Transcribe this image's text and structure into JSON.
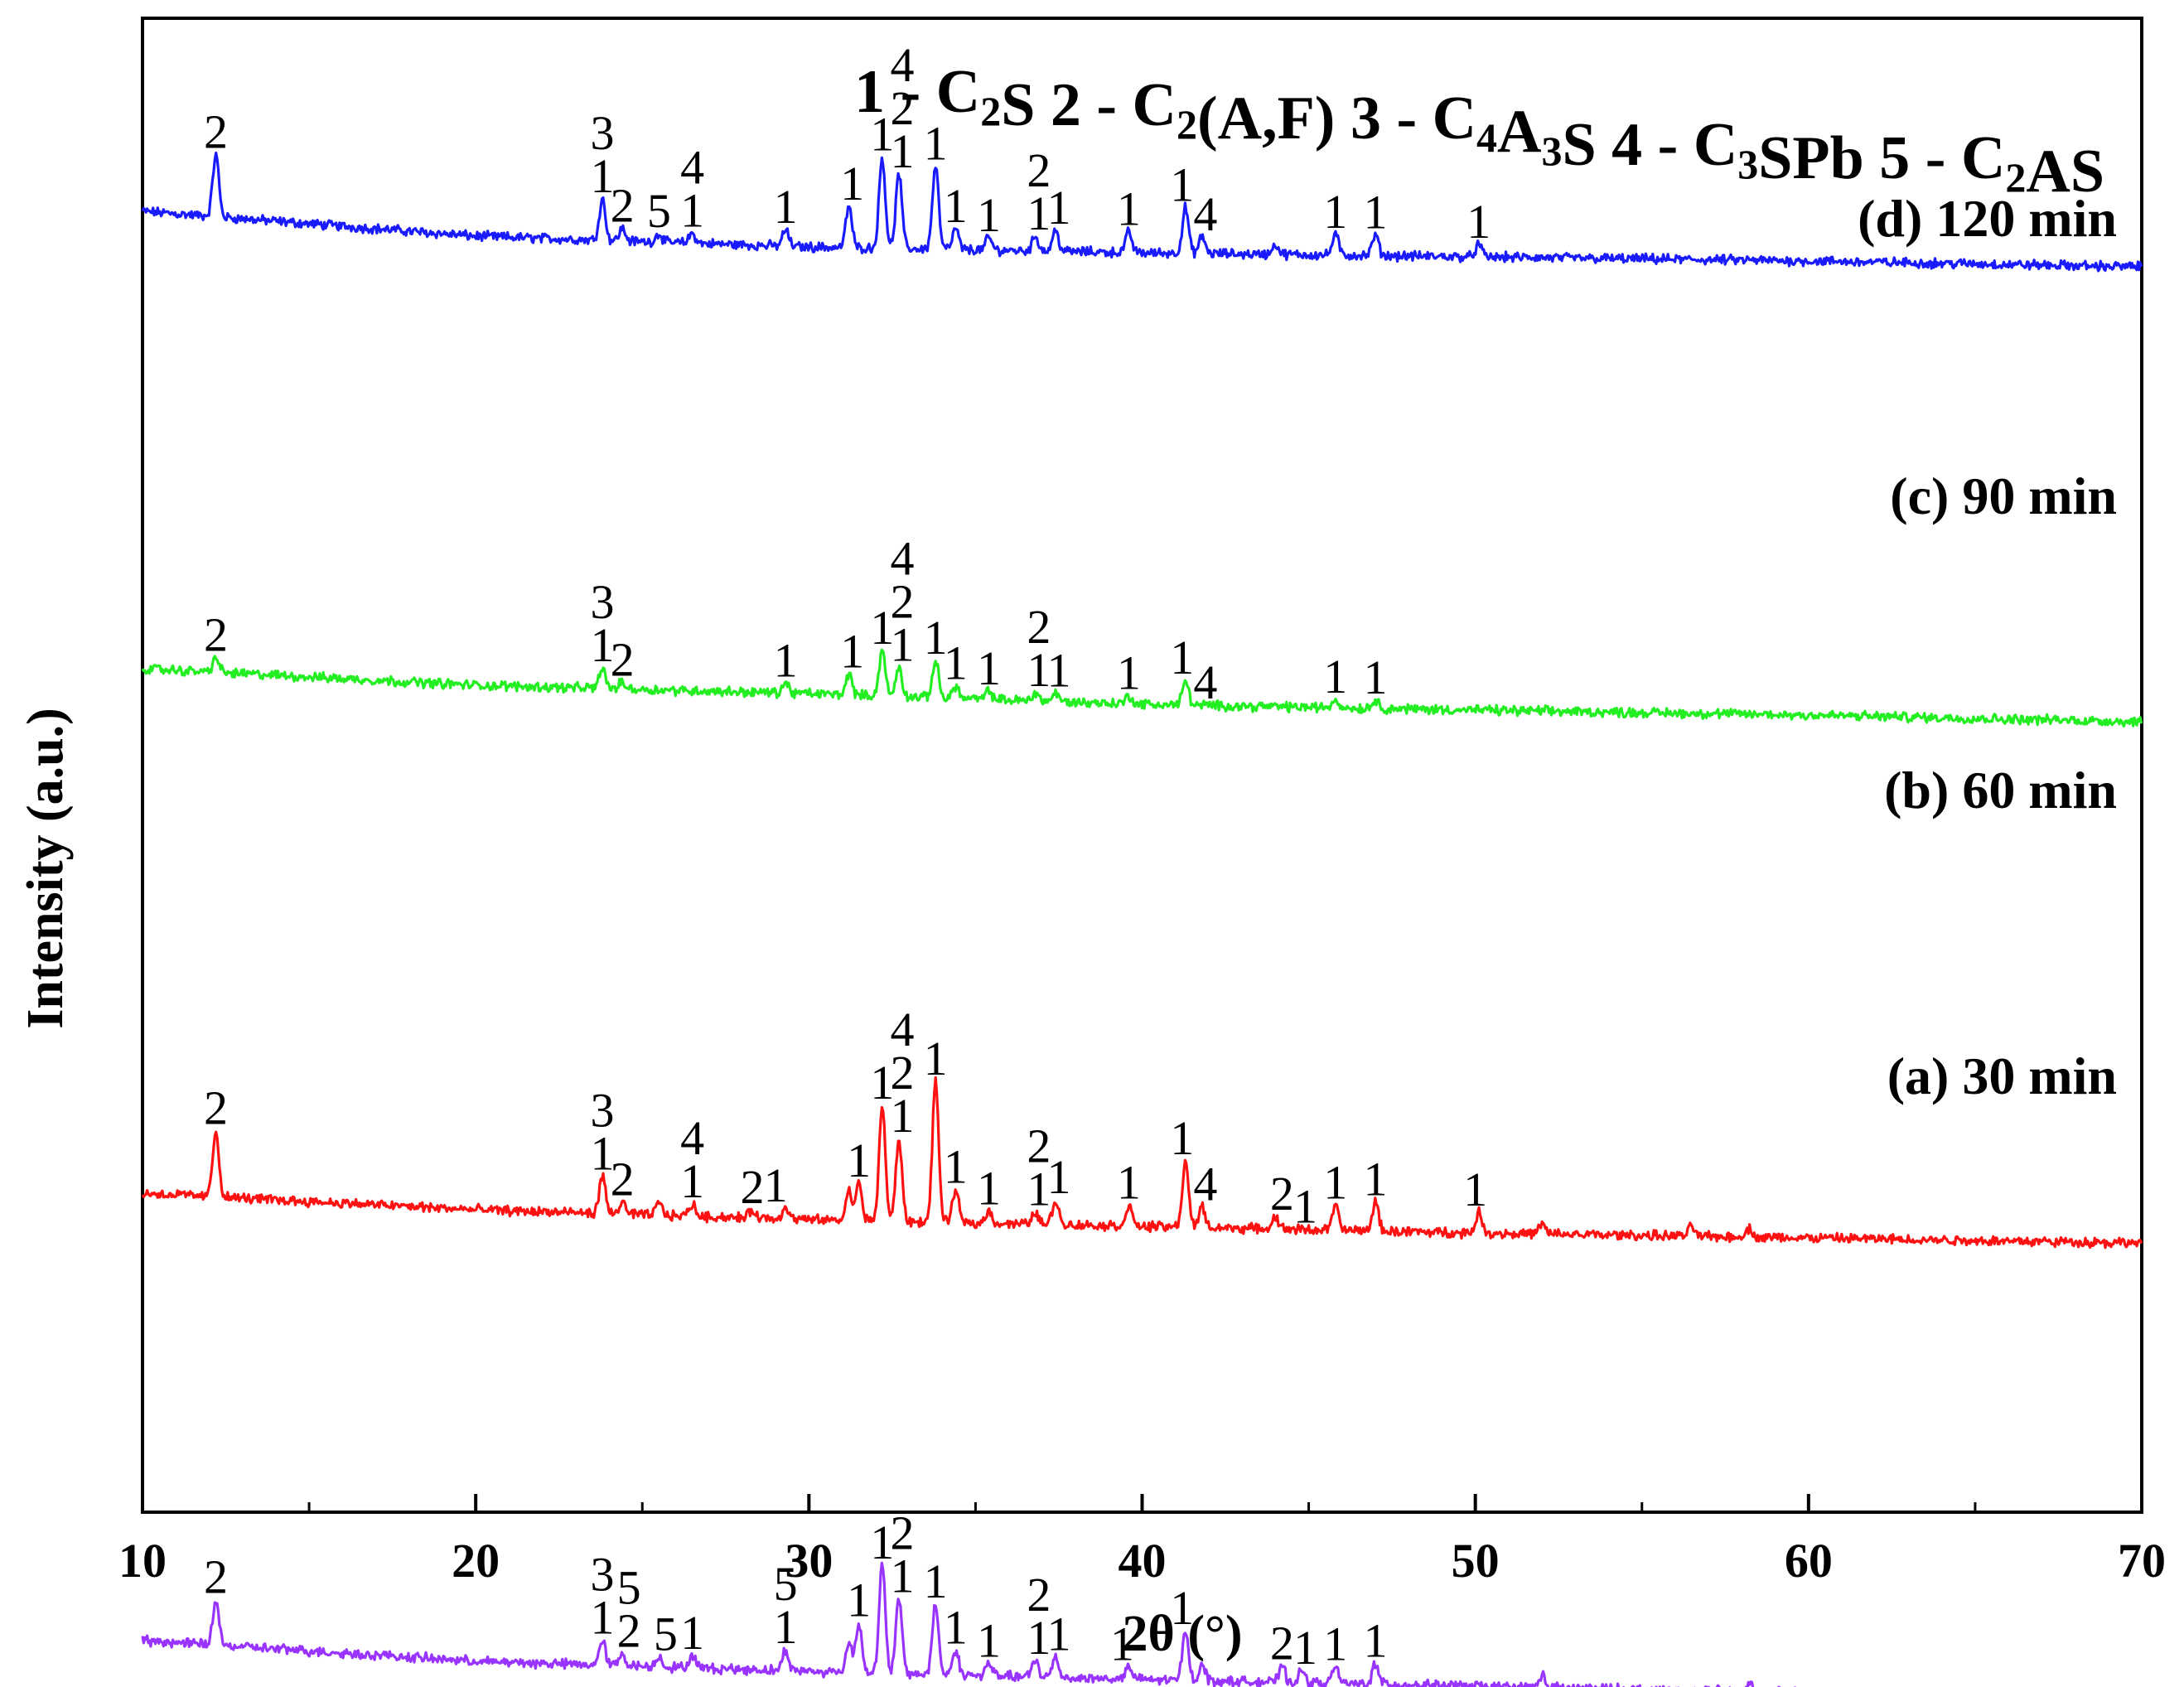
{
  "chart_data": {
    "type": "line",
    "xlabel": "2θ (°)",
    "ylabel": "Intensity (a.u.)",
    "xlim": [
      10,
      70
    ],
    "xticks": [
      10,
      20,
      30,
      40,
      50,
      60,
      70
    ],
    "legend_phases": [
      {
        "num": "1",
        "parts": [
          [
            "C",
            ""
          ],
          [
            "2",
            "sub"
          ],
          [
            "S",
            ""
          ]
        ]
      },
      {
        "num": "2",
        "parts": [
          [
            "C",
            ""
          ],
          [
            "2",
            "sub"
          ],
          [
            "(A,F)",
            ""
          ]
        ]
      },
      {
        "num": "3",
        "parts": [
          [
            "C",
            ""
          ],
          [
            "4",
            "sub"
          ],
          [
            "A",
            ""
          ],
          [
            "3",
            "sub"
          ],
          [
            "S",
            ""
          ]
        ]
      },
      {
        "num": "4",
        "parts": [
          [
            "C",
            ""
          ],
          [
            "3",
            "sub"
          ],
          [
            "SPb",
            ""
          ]
        ]
      },
      {
        "num": "5",
        "parts": [
          [
            "C",
            ""
          ],
          [
            "2",
            "sub"
          ],
          [
            "AS",
            ""
          ]
        ]
      }
    ],
    "series": [
      {
        "name": "(d) 120 min",
        "color": "#1a1aff",
        "baseline": [
          [
            10,
            365
          ],
          [
            20,
            335
          ],
          [
            30,
            322
          ],
          [
            40,
            315
          ],
          [
            50,
            310
          ],
          [
            60,
            305
          ],
          [
            70,
            298
          ]
        ],
        "peaks": [
          [
            12.2,
            75
          ],
          [
            23.8,
            50
          ],
          [
            24.4,
            15
          ],
          [
            25.5,
            10
          ],
          [
            26.5,
            12
          ],
          [
            29.3,
            20
          ],
          [
            31.2,
            50
          ],
          [
            32.2,
            110
          ],
          [
            32.7,
            90
          ],
          [
            33.8,
            100
          ],
          [
            34.4,
            25
          ],
          [
            35.4,
            15
          ],
          [
            36.8,
            18
          ],
          [
            37.4,
            25
          ],
          [
            39.6,
            25
          ],
          [
            41.3,
            55
          ],
          [
            41.8,
            20
          ],
          [
            44.0,
            12
          ],
          [
            45.8,
            25
          ],
          [
            47.0,
            25
          ],
          [
            50.1,
            15
          ]
        ],
        "labels": [
          {
            "x": 12.2,
            "lines": [
              "2"
            ]
          },
          {
            "x": 23.8,
            "lines": [
              "3",
              "1"
            ]
          },
          {
            "x": 24.4,
            "lines": [
              "2"
            ]
          },
          {
            "x": 25.5,
            "lines": [
              "5"
            ]
          },
          {
            "x": 26.5,
            "lines": [
              "4",
              "1"
            ]
          },
          {
            "x": 29.3,
            "lines": [
              "1"
            ]
          },
          {
            "x": 31.3,
            "lines": [
              "1"
            ]
          },
          {
            "x": 32.2,
            "lines": [
              "1"
            ]
          },
          {
            "x": 32.8,
            "lines": [
              "4",
              "2",
              "1"
            ]
          },
          {
            "x": 33.8,
            "lines": [
              "1"
            ]
          },
          {
            "x": 34.4,
            "lines": [
              "1"
            ]
          },
          {
            "x": 35.4,
            "lines": [
              "1"
            ]
          },
          {
            "x": 36.9,
            "lines": [
              "2",
              "1"
            ]
          },
          {
            "x": 37.5,
            "lines": [
              "1"
            ]
          },
          {
            "x": 39.6,
            "lines": [
              "1"
            ]
          },
          {
            "x": 41.2,
            "lines": [
              "1"
            ]
          },
          {
            "x": 41.9,
            "lines": [
              "4"
            ]
          },
          {
            "x": 45.8,
            "lines": [
              "1"
            ]
          },
          {
            "x": 47.0,
            "lines": [
              "1"
            ]
          },
          {
            "x": 50.1,
            "lines": [
              "1"
            ]
          }
        ]
      },
      {
        "name": "(c) 90 min",
        "color": "#22ee22",
        "baseline": [
          [
            10,
            148
          ],
          [
            20,
            128
          ],
          [
            30,
            118
          ],
          [
            40,
            105
          ],
          [
            50,
            98
          ],
          [
            60,
            92
          ],
          [
            70,
            84
          ]
        ],
        "peaks": [
          [
            12.2,
            18
          ],
          [
            23.8,
            25
          ],
          [
            24.4,
            8
          ],
          [
            29.3,
            12
          ],
          [
            31.2,
            25
          ],
          [
            32.2,
            55
          ],
          [
            32.7,
            35
          ],
          [
            33.8,
            45
          ],
          [
            34.4,
            15
          ],
          [
            35.4,
            10
          ],
          [
            36.8,
            10
          ],
          [
            37.4,
            10
          ],
          [
            39.6,
            10
          ],
          [
            41.3,
            30
          ],
          [
            45.8,
            10
          ],
          [
            47.0,
            10
          ]
        ],
        "labels": [
          {
            "x": 12.2,
            "lines": [
              "2"
            ]
          },
          {
            "x": 23.8,
            "lines": [
              "3",
              "1"
            ]
          },
          {
            "x": 24.4,
            "lines": [
              "2"
            ]
          },
          {
            "x": 29.3,
            "lines": [
              "1"
            ]
          },
          {
            "x": 31.3,
            "lines": [
              "1"
            ]
          },
          {
            "x": 32.2,
            "lines": [
              "1"
            ]
          },
          {
            "x": 32.8,
            "lines": [
              "4",
              "2",
              "1"
            ]
          },
          {
            "x": 33.8,
            "lines": [
              "1"
            ]
          },
          {
            "x": 34.4,
            "lines": [
              "1"
            ]
          },
          {
            "x": 35.4,
            "lines": [
              "1"
            ]
          },
          {
            "x": 36.9,
            "lines": [
              "2",
              "1"
            ]
          },
          {
            "x": 37.5,
            "lines": [
              "1"
            ]
          },
          {
            "x": 39.6,
            "lines": [
              "1"
            ]
          },
          {
            "x": 41.2,
            "lines": [
              "1"
            ]
          },
          {
            "x": 41.9,
            "lines": [
              "4"
            ]
          },
          {
            "x": 45.8,
            "lines": [
              "1"
            ]
          },
          {
            "x": 47.0,
            "lines": [
              "1"
            ]
          }
        ]
      },
      {
        "name": "(b) 60 min",
        "color": "#ff1111",
        "baseline": [
          [
            10,
            -130
          ],
          [
            20,
            -150
          ],
          [
            30,
            -162
          ],
          [
            40,
            -170
          ],
          [
            50,
            -178
          ],
          [
            60,
            -184
          ],
          [
            70,
            -190
          ]
        ],
        "peaks": [
          [
            12.2,
            80
          ],
          [
            23.8,
            45
          ],
          [
            24.4,
            15
          ],
          [
            25.5,
            15
          ],
          [
            26.5,
            15
          ],
          [
            28.3,
            10
          ],
          [
            29.3,
            15
          ],
          [
            31.2,
            35
          ],
          [
            31.5,
            45
          ],
          [
            32.2,
            140
          ],
          [
            32.7,
            100
          ],
          [
            33.8,
            170
          ],
          [
            34.4,
            40
          ],
          [
            35.4,
            15
          ],
          [
            36.8,
            15
          ],
          [
            37.4,
            30
          ],
          [
            39.6,
            25
          ],
          [
            41.3,
            80
          ],
          [
            41.8,
            25
          ],
          [
            44.0,
            15
          ],
          [
            45.8,
            30
          ],
          [
            47.0,
            35
          ],
          [
            50.1,
            25
          ],
          [
            52.0,
            12
          ],
          [
            56.5,
            12
          ],
          [
            58.2,
            10
          ]
        ],
        "labels": [
          {
            "x": 12.2,
            "lines": [
              "2"
            ]
          },
          {
            "x": 23.8,
            "lines": [
              "3",
              "1"
            ]
          },
          {
            "x": 24.4,
            "lines": [
              "2"
            ]
          },
          {
            "x": 26.5,
            "lines": [
              "4",
              "1"
            ]
          },
          {
            "x": 28.3,
            "lines": [
              "2"
            ]
          },
          {
            "x": 29.0,
            "lines": [
              "1"
            ]
          },
          {
            "x": 31.5,
            "lines": [
              "1"
            ]
          },
          {
            "x": 32.2,
            "lines": [
              "1"
            ]
          },
          {
            "x": 32.8,
            "lines": [
              "4",
              "2",
              "1"
            ]
          },
          {
            "x": 33.8,
            "lines": [
              "1"
            ]
          },
          {
            "x": 34.4,
            "lines": [
              "1"
            ]
          },
          {
            "x": 35.4,
            "lines": [
              "1"
            ]
          },
          {
            "x": 36.9,
            "lines": [
              "2",
              "1"
            ]
          },
          {
            "x": 37.5,
            "lines": [
              "1"
            ]
          },
          {
            "x": 39.6,
            "lines": [
              "1"
            ]
          },
          {
            "x": 41.2,
            "lines": [
              "1"
            ]
          },
          {
            "x": 41.9,
            "lines": [
              "4"
            ]
          },
          {
            "x": 44.2,
            "lines": [
              "2"
            ]
          },
          {
            "x": 44.9,
            "lines": [
              "1"
            ]
          },
          {
            "x": 45.8,
            "lines": [
              "1"
            ]
          },
          {
            "x": 47.0,
            "lines": [
              "1"
            ]
          },
          {
            "x": 50.0,
            "lines": [
              "1"
            ]
          }
        ]
      },
      {
        "name": "(a) 30 min",
        "color": "#9933ff",
        "baseline": [
          [
            10,
            -325
          ],
          [
            20,
            -350
          ],
          [
            30,
            -362
          ],
          [
            40,
            -372
          ],
          [
            50,
            -380
          ],
          [
            60,
            -388
          ],
          [
            70,
            -395
          ]
        ],
        "peaks": [
          [
            12.2,
            55
          ],
          [
            23.8,
            30
          ],
          [
            24.4,
            15
          ],
          [
            25.5,
            12
          ],
          [
            26.5,
            15
          ],
          [
            29.3,
            25
          ],
          [
            31.2,
            35
          ],
          [
            31.5,
            60
          ],
          [
            32.2,
            130
          ],
          [
            32.7,
            90
          ],
          [
            33.8,
            85
          ],
          [
            34.4,
            30
          ],
          [
            35.4,
            15
          ],
          [
            36.8,
            20
          ],
          [
            37.4,
            25
          ],
          [
            39.6,
            15
          ],
          [
            41.3,
            60
          ],
          [
            41.8,
            20
          ],
          [
            44.2,
            20
          ],
          [
            44.8,
            15
          ],
          [
            45.8,
            20
          ],
          [
            47.0,
            25
          ],
          [
            52.0,
            15
          ],
          [
            58.2,
            10
          ]
        ],
        "labels": [
          {
            "x": 12.2,
            "lines": [
              "2"
            ]
          },
          {
            "x": 23.8,
            "lines": [
              "3",
              "1"
            ]
          },
          {
            "x": 24.6,
            "lines": [
              "5",
              "2"
            ]
          },
          {
            "x": 25.7,
            "lines": [
              "5"
            ]
          },
          {
            "x": 26.5,
            "lines": [
              "1"
            ]
          },
          {
            "x": 29.3,
            "lines": [
              "5",
              "1"
            ]
          },
          {
            "x": 31.5,
            "lines": [
              "1"
            ]
          },
          {
            "x": 32.2,
            "lines": [
              "1"
            ]
          },
          {
            "x": 32.8,
            "lines": [
              "2",
              "1"
            ]
          },
          {
            "x": 33.8,
            "lines": [
              "1"
            ]
          },
          {
            "x": 34.4,
            "lines": [
              "1"
            ]
          },
          {
            "x": 35.4,
            "lines": [
              "1"
            ]
          },
          {
            "x": 36.9,
            "lines": [
              "2",
              "1"
            ]
          },
          {
            "x": 37.5,
            "lines": [
              "1"
            ]
          },
          {
            "x": 39.4,
            "lines": [
              "1"
            ]
          },
          {
            "x": 41.2,
            "lines": [
              "1"
            ]
          },
          {
            "x": 44.2,
            "lines": [
              "2"
            ]
          },
          {
            "x": 44.9,
            "lines": [
              "1"
            ]
          },
          {
            "x": 45.8,
            "lines": [
              "1"
            ]
          },
          {
            "x": 47.0,
            "lines": [
              "1"
            ]
          }
        ]
      }
    ],
    "grid": false,
    "legend_position": "top"
  }
}
